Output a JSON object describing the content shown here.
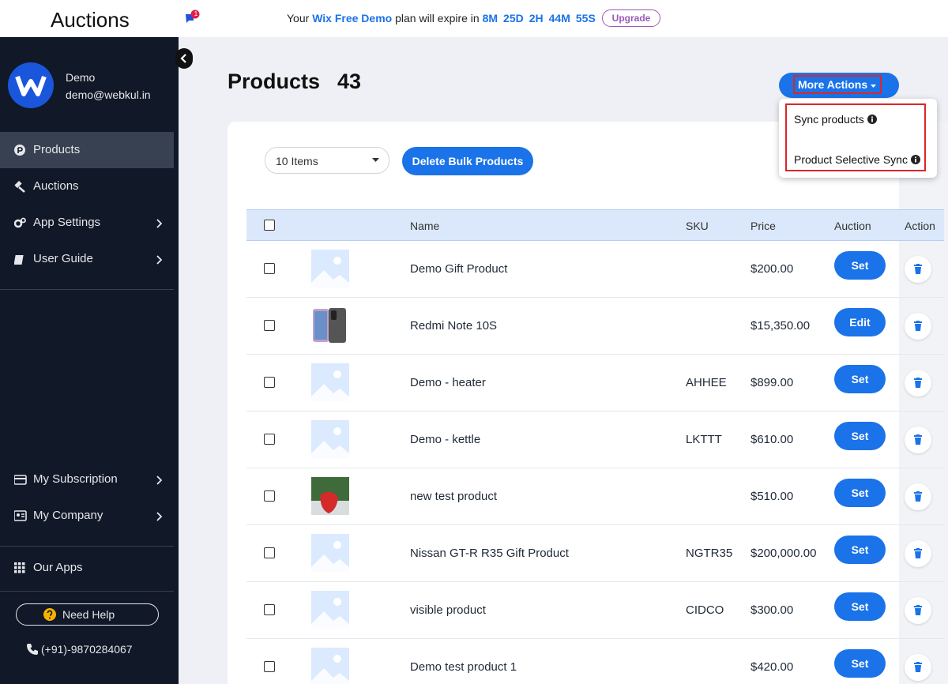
{
  "header": {
    "app_title": "Auctions",
    "badge": "1",
    "banner": {
      "prefix": "Your",
      "plan": "Wix Free Demo",
      "middle": "plan will expire in",
      "countdown": [
        "8M",
        "25D",
        "2H",
        "44M",
        "55S"
      ],
      "button": "Upgrade"
    }
  },
  "sidebar": {
    "user": {
      "name": "Demo",
      "email": "demo@webkul.in"
    },
    "menu": [
      {
        "label": "Products",
        "active": true
      },
      {
        "label": "Auctions"
      },
      {
        "label": "App Settings",
        "submenu": true
      },
      {
        "label": "User Guide",
        "submenu": true
      }
    ],
    "bottom_menu": [
      {
        "label": "My Subscription",
        "submenu": true
      },
      {
        "label": "My Company",
        "submenu": true
      }
    ],
    "our_apps": "Our Apps",
    "help": "Need Help",
    "phone": "(+91)-9870284067"
  },
  "page": {
    "title": "Products",
    "count": 43,
    "more_actions": "More Actions",
    "dropdown": [
      "Sync products",
      "Product Selective Sync"
    ],
    "items_select": "10 Items",
    "bulk_delete": "Delete Bulk Products",
    "table": {
      "columns": [
        "Name",
        "SKU",
        "Price",
        "Auction",
        "Action"
      ],
      "rows": [
        {
          "name": "Demo Gift Product",
          "price": "$200.00",
          "auction": "Set"
        },
        {
          "name": "Redmi Note 10S",
          "price": "$15,350.00",
          "auction": "Edit",
          "image": "phone"
        },
        {
          "name": "Demo - heater",
          "sku": "AHHEE",
          "price": "$899.00",
          "auction": "Set"
        },
        {
          "name": "Demo - kettle",
          "sku": "LKTTT",
          "price": "$610.00",
          "auction": "Set"
        },
        {
          "name": "new test product",
          "price": "$510.00",
          "auction": "Set",
          "image": "strawberry"
        },
        {
          "name": "Nissan GT-R R35 Gift Product",
          "sku": "NGTR35",
          "price": "$200,000.00",
          "auction": "Set"
        },
        {
          "name": "visible product",
          "sku": "CIDCO",
          "price": "$300.00",
          "auction": "Set"
        },
        {
          "name": "Demo test product 1",
          "price": "$420.00",
          "auction": "Set"
        }
      ]
    }
  }
}
